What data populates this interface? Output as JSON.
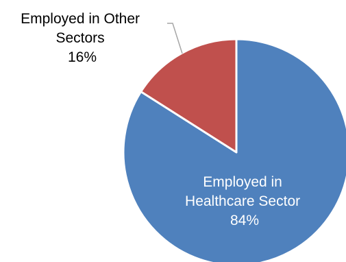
{
  "chart_data": {
    "type": "pie",
    "title": "",
    "slices": [
      {
        "label_lines": [
          "Employed in",
          "Healthcare Sector"
        ],
        "value": 84,
        "value_label": "84%",
        "color": "#4F81BD",
        "label_color": "#ffffff"
      },
      {
        "label_lines": [
          "Employed in Other",
          "Sectors"
        ],
        "value": 16,
        "value_label": "16%",
        "color": "#C0504D",
        "label_color": "#000000"
      }
    ],
    "start_angle": "12 o'clock",
    "direction": "clockwise",
    "slice_border_color": "#ffffff",
    "leader_line_color": "#a6a6a6"
  }
}
